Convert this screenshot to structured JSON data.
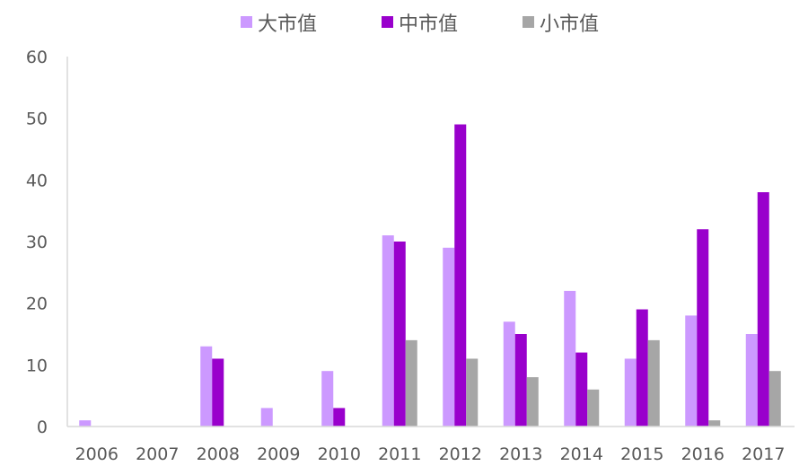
{
  "chart_data": {
    "type": "bar",
    "title": "",
    "xlabel": "",
    "ylabel": "",
    "ylim": [
      0,
      60
    ],
    "yticks": [
      0,
      10,
      20,
      30,
      40,
      50,
      60
    ],
    "grid": false,
    "legend_position": "top",
    "categories": [
      "2006",
      "2007",
      "2008",
      "2009",
      "2010",
      "2011",
      "2012",
      "2013",
      "2014",
      "2015",
      "2016",
      "2017"
    ],
    "series": [
      {
        "name": "大市值",
        "color": "#CC99FF",
        "values": [
          1,
          0,
          13,
          3,
          9,
          31,
          29,
          17,
          22,
          11,
          18,
          15
        ]
      },
      {
        "name": "中市值",
        "color": "#9900CC",
        "values": [
          0,
          0,
          11,
          0,
          3,
          30,
          49,
          15,
          12,
          19,
          32,
          38
        ]
      },
      {
        "name": "小市值",
        "color": "#A6A6A6",
        "values": [
          0,
          0,
          0,
          0,
          0,
          14,
          11,
          8,
          6,
          14,
          1,
          9
        ]
      }
    ]
  }
}
